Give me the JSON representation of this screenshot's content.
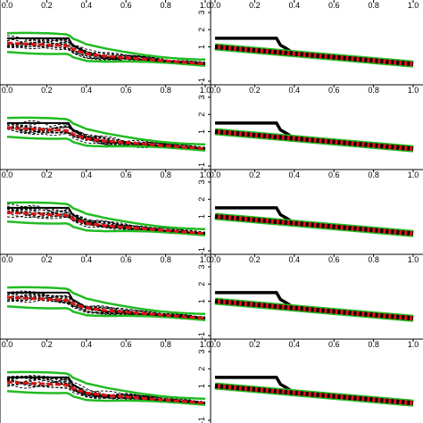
{
  "colors": {
    "estimate": "#000000",
    "band": "#22bb22",
    "mean": "#dd1111",
    "posterior_draws": "#000000"
  },
  "chart_data": [
    {
      "type": "line",
      "panel": "row1-left",
      "xlim": [
        0,
        1
      ],
      "xticks": [
        "0.0",
        "0.2",
        "0.4",
        "0.6",
        "0.8",
        "1.0"
      ]
    },
    {
      "type": "line",
      "panel": "row1-right",
      "xlim": [
        0,
        1
      ],
      "ylim": [
        -1,
        3
      ],
      "yticks": [
        "-1",
        "1",
        "2",
        "3"
      ],
      "xticks": [
        "0.0",
        "0.2",
        "0.4",
        "0.6",
        "0.8",
        "1.0"
      ]
    },
    {
      "type": "line",
      "panel": "row2-left",
      "xlim": [
        0,
        1
      ],
      "xticks": [
        "0.0",
        "0.2",
        "0.4",
        "0.6",
        "0.8",
        "1.0"
      ]
    },
    {
      "type": "line",
      "panel": "row2-right",
      "xlim": [
        0,
        1
      ],
      "ylim": [
        -1,
        3
      ],
      "yticks": [
        "-1",
        "1",
        "2",
        "3"
      ],
      "xticks": [
        "0.0",
        "0.2",
        "0.4",
        "0.6",
        "0.8",
        "1.0"
      ]
    },
    {
      "type": "line",
      "panel": "row3-left",
      "xlim": [
        0,
        1
      ],
      "xticks": [
        "0.0",
        "0.2",
        "0.4",
        "0.6",
        "0.8",
        "1.0"
      ]
    },
    {
      "type": "line",
      "panel": "row3-right",
      "xlim": [
        0,
        1
      ],
      "ylim": [
        -1,
        3
      ],
      "yticks": [
        "-1",
        "1",
        "2",
        "3"
      ],
      "xticks": [
        "0.0",
        "0.2",
        "0.4",
        "0.6",
        "0.8",
        "1.0"
      ]
    },
    {
      "type": "line",
      "panel": "row4-left",
      "xlim": [
        0,
        1
      ],
      "xticks": [
        "0.0",
        "0.2",
        "0.4",
        "0.6",
        "0.8",
        "1.0"
      ]
    },
    {
      "type": "line",
      "panel": "row4-right",
      "xlim": [
        0,
        1
      ],
      "ylim": [
        -1,
        3
      ],
      "yticks": [
        "-1",
        "1",
        "2",
        "3"
      ],
      "xticks": [
        "0.0",
        "0.2",
        "0.4",
        "0.6",
        "0.8",
        "1.0"
      ]
    },
    {
      "type": "line",
      "panel": "row5-left",
      "xlim": [
        0,
        1
      ],
      "xticks": [
        "0.0",
        "0.2",
        "0.4",
        "0.6",
        "0.8",
        "1.0"
      ]
    },
    {
      "type": "line",
      "panel": "row5-right",
      "xlim": [
        0,
        1
      ],
      "ylim": [
        -1,
        3
      ],
      "yticks": [
        "-1",
        "1",
        "2",
        "3"
      ],
      "xticks": [
        "0.0",
        "0.2",
        "0.4",
        "0.6",
        "0.8",
        "1.0"
      ]
    }
  ],
  "series_shapes": {
    "truth": {
      "x": [
        0,
        0.31,
        0.33,
        0.36,
        0.4,
        0.5,
        0.6,
        0.7,
        0.8,
        0.9,
        1.0
      ],
      "y": [
        1.5,
        1.5,
        1.1,
        0.9,
        0.6,
        0.4,
        0.32,
        0.24,
        0.16,
        0.08,
        0.0
      ]
    },
    "linear_fit": {
      "x": [
        0,
        1
      ],
      "y": [
        1.0,
        0.0
      ]
    }
  }
}
